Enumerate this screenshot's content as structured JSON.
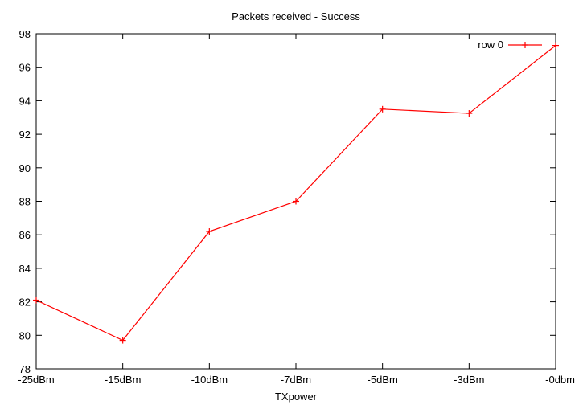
{
  "chart_data": {
    "type": "line",
    "title": "Packets received - Success",
    "xlabel": "TXpower",
    "ylabel": "",
    "categories": [
      "-25dBm",
      "-15dBm",
      "-10dBm",
      "-7dBm",
      "-5dBm",
      "-3dBm",
      "-0dbm"
    ],
    "series": [
      {
        "name": "row 0",
        "values": [
          82.1,
          79.7,
          86.2,
          88.0,
          93.5,
          93.25,
          97.3
        ],
        "color": "#ff0000"
      }
    ],
    "ylim": [
      78,
      98
    ],
    "yticks": [
      78,
      80,
      82,
      84,
      86,
      88,
      90,
      92,
      94,
      96,
      98
    ],
    "grid": false,
    "legend_position": "top-right"
  }
}
